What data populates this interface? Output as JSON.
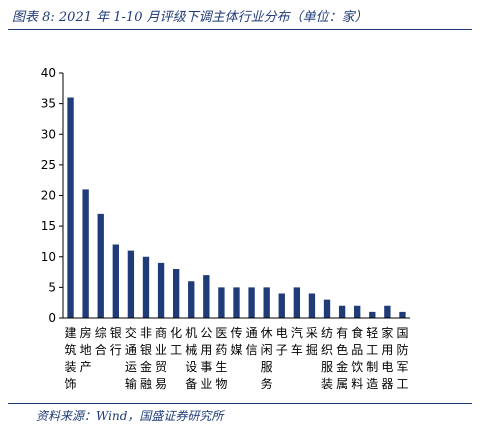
{
  "header": {
    "title": "图表 8:  2021 年 1-10 月评级下调主体行业分布（单位：家）"
  },
  "footer": {
    "source": "资料来源：Wind，国盛证券研究所"
  },
  "colors": {
    "bar": "#1f3b78",
    "rule": "#1f3b78",
    "axis": "#000000"
  },
  "chart_data": {
    "type": "bar",
    "title": "",
    "xlabel": "",
    "ylabel": "",
    "ylim": [
      0,
      40
    ],
    "yticks": [
      0,
      5,
      10,
      15,
      20,
      25,
      30,
      35,
      40
    ],
    "grid": false,
    "legend": "none",
    "categories": [
      "建筑装饰",
      "房地产",
      "综合",
      "银行",
      "交通运输",
      "非银金融",
      "商业贸易",
      "化工",
      "机械设备",
      "公用事业",
      "医药生物",
      "传媒",
      "通信",
      "休闲服务",
      "电子",
      "汽车",
      "采掘",
      "纺织服装",
      "有色金属",
      "食品饮料",
      "轻工制造",
      "家用电器",
      "国防军工"
    ],
    "values": [
      36,
      21,
      17,
      12,
      11,
      10,
      9,
      8,
      6,
      7,
      5,
      5,
      5,
      5,
      4,
      5,
      4,
      3,
      2,
      2,
      1,
      2,
      1
    ]
  }
}
